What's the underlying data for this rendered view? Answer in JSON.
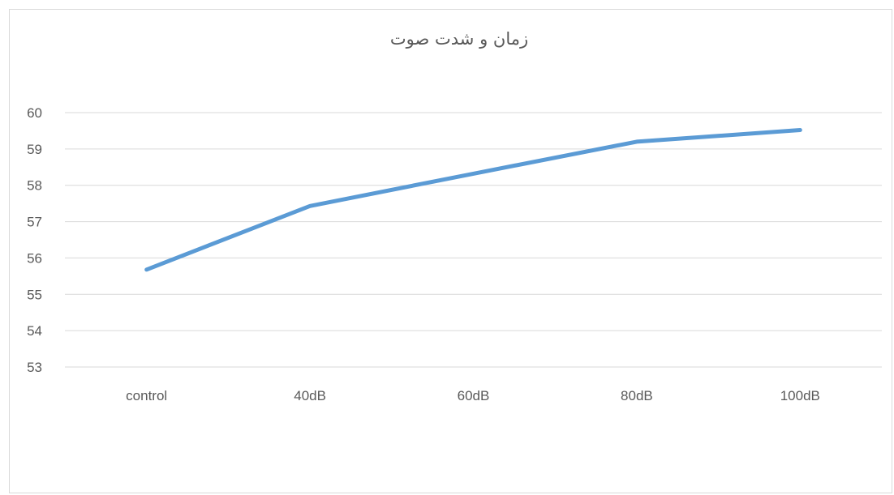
{
  "chart_data": {
    "type": "line",
    "title": "زمان و شدت صوت",
    "xlabel": "",
    "ylabel": "",
    "categories": [
      "control",
      "40dB",
      "60dB",
      "80dB",
      "100dB"
    ],
    "series": [
      {
        "values": [
          55.68,
          57.43,
          58.32,
          59.2,
          59.52
        ],
        "color": "#5b9bd5"
      }
    ],
    "ylim": [
      53,
      60
    ],
    "yticks": [
      "53",
      "54",
      "55",
      "56",
      "57",
      "58",
      "59",
      "60"
    ],
    "grid": true,
    "legend": "none"
  }
}
